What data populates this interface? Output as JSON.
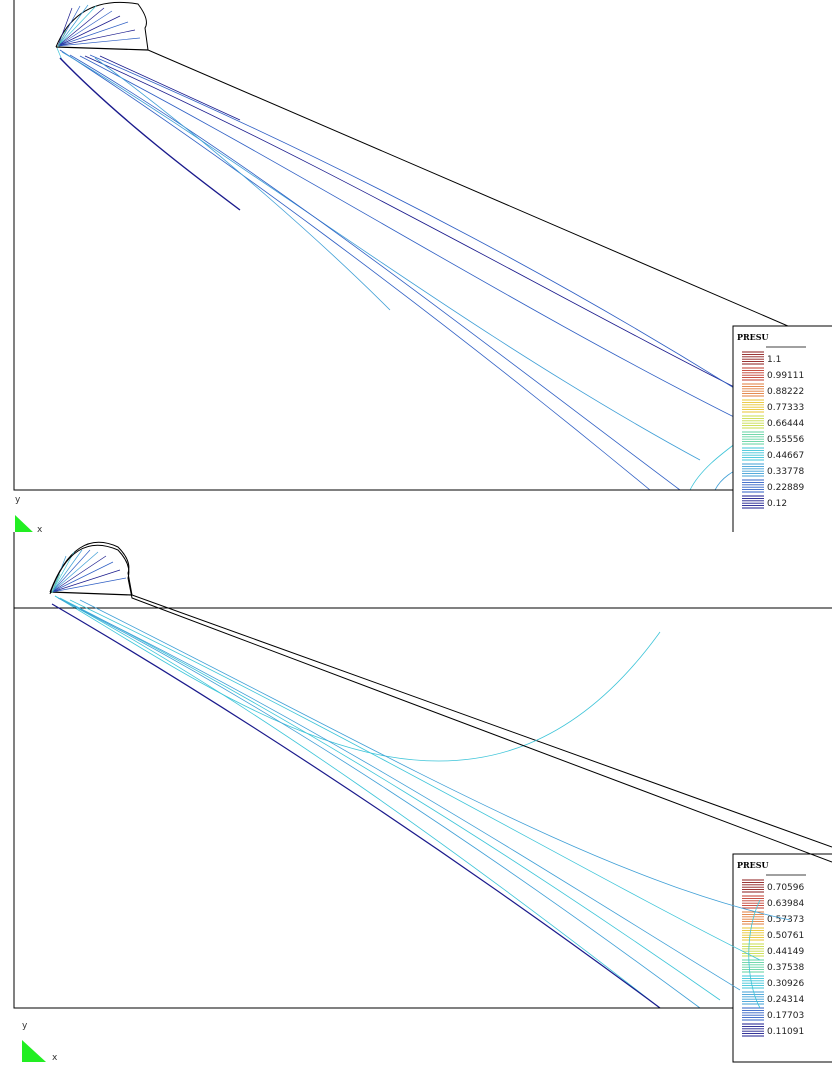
{
  "panels": [
    {
      "legend_title": "PRESU",
      "legend_values": [
        "1.1",
        "0.99111",
        "0.88222",
        "0.77333",
        "0.66444",
        "0.55556",
        "0.44667",
        "0.33778",
        "0.22889",
        "0.12"
      ],
      "axis_y_label": "y",
      "axis_x_label": "x"
    },
    {
      "legend_title": "PRESU",
      "legend_values": [
        "0.70596",
        "0.63984",
        "0.57373",
        "0.50761",
        "0.44149",
        "0.37538",
        "0.30926",
        "0.24314",
        "0.17703",
        "0.11091"
      ],
      "axis_y_label": "y",
      "axis_x_label": "x"
    }
  ],
  "colors": {
    "scale": [
      "#8b1a1a",
      "#c0392b",
      "#e07b39",
      "#e8c530",
      "#c8dc4a",
      "#5fd3a0",
      "#3cc4d8",
      "#3f9fd6",
      "#2f5fc4",
      "#1a1a8c"
    ],
    "triad_green": "#22ee22",
    "outline": "#000000"
  }
}
